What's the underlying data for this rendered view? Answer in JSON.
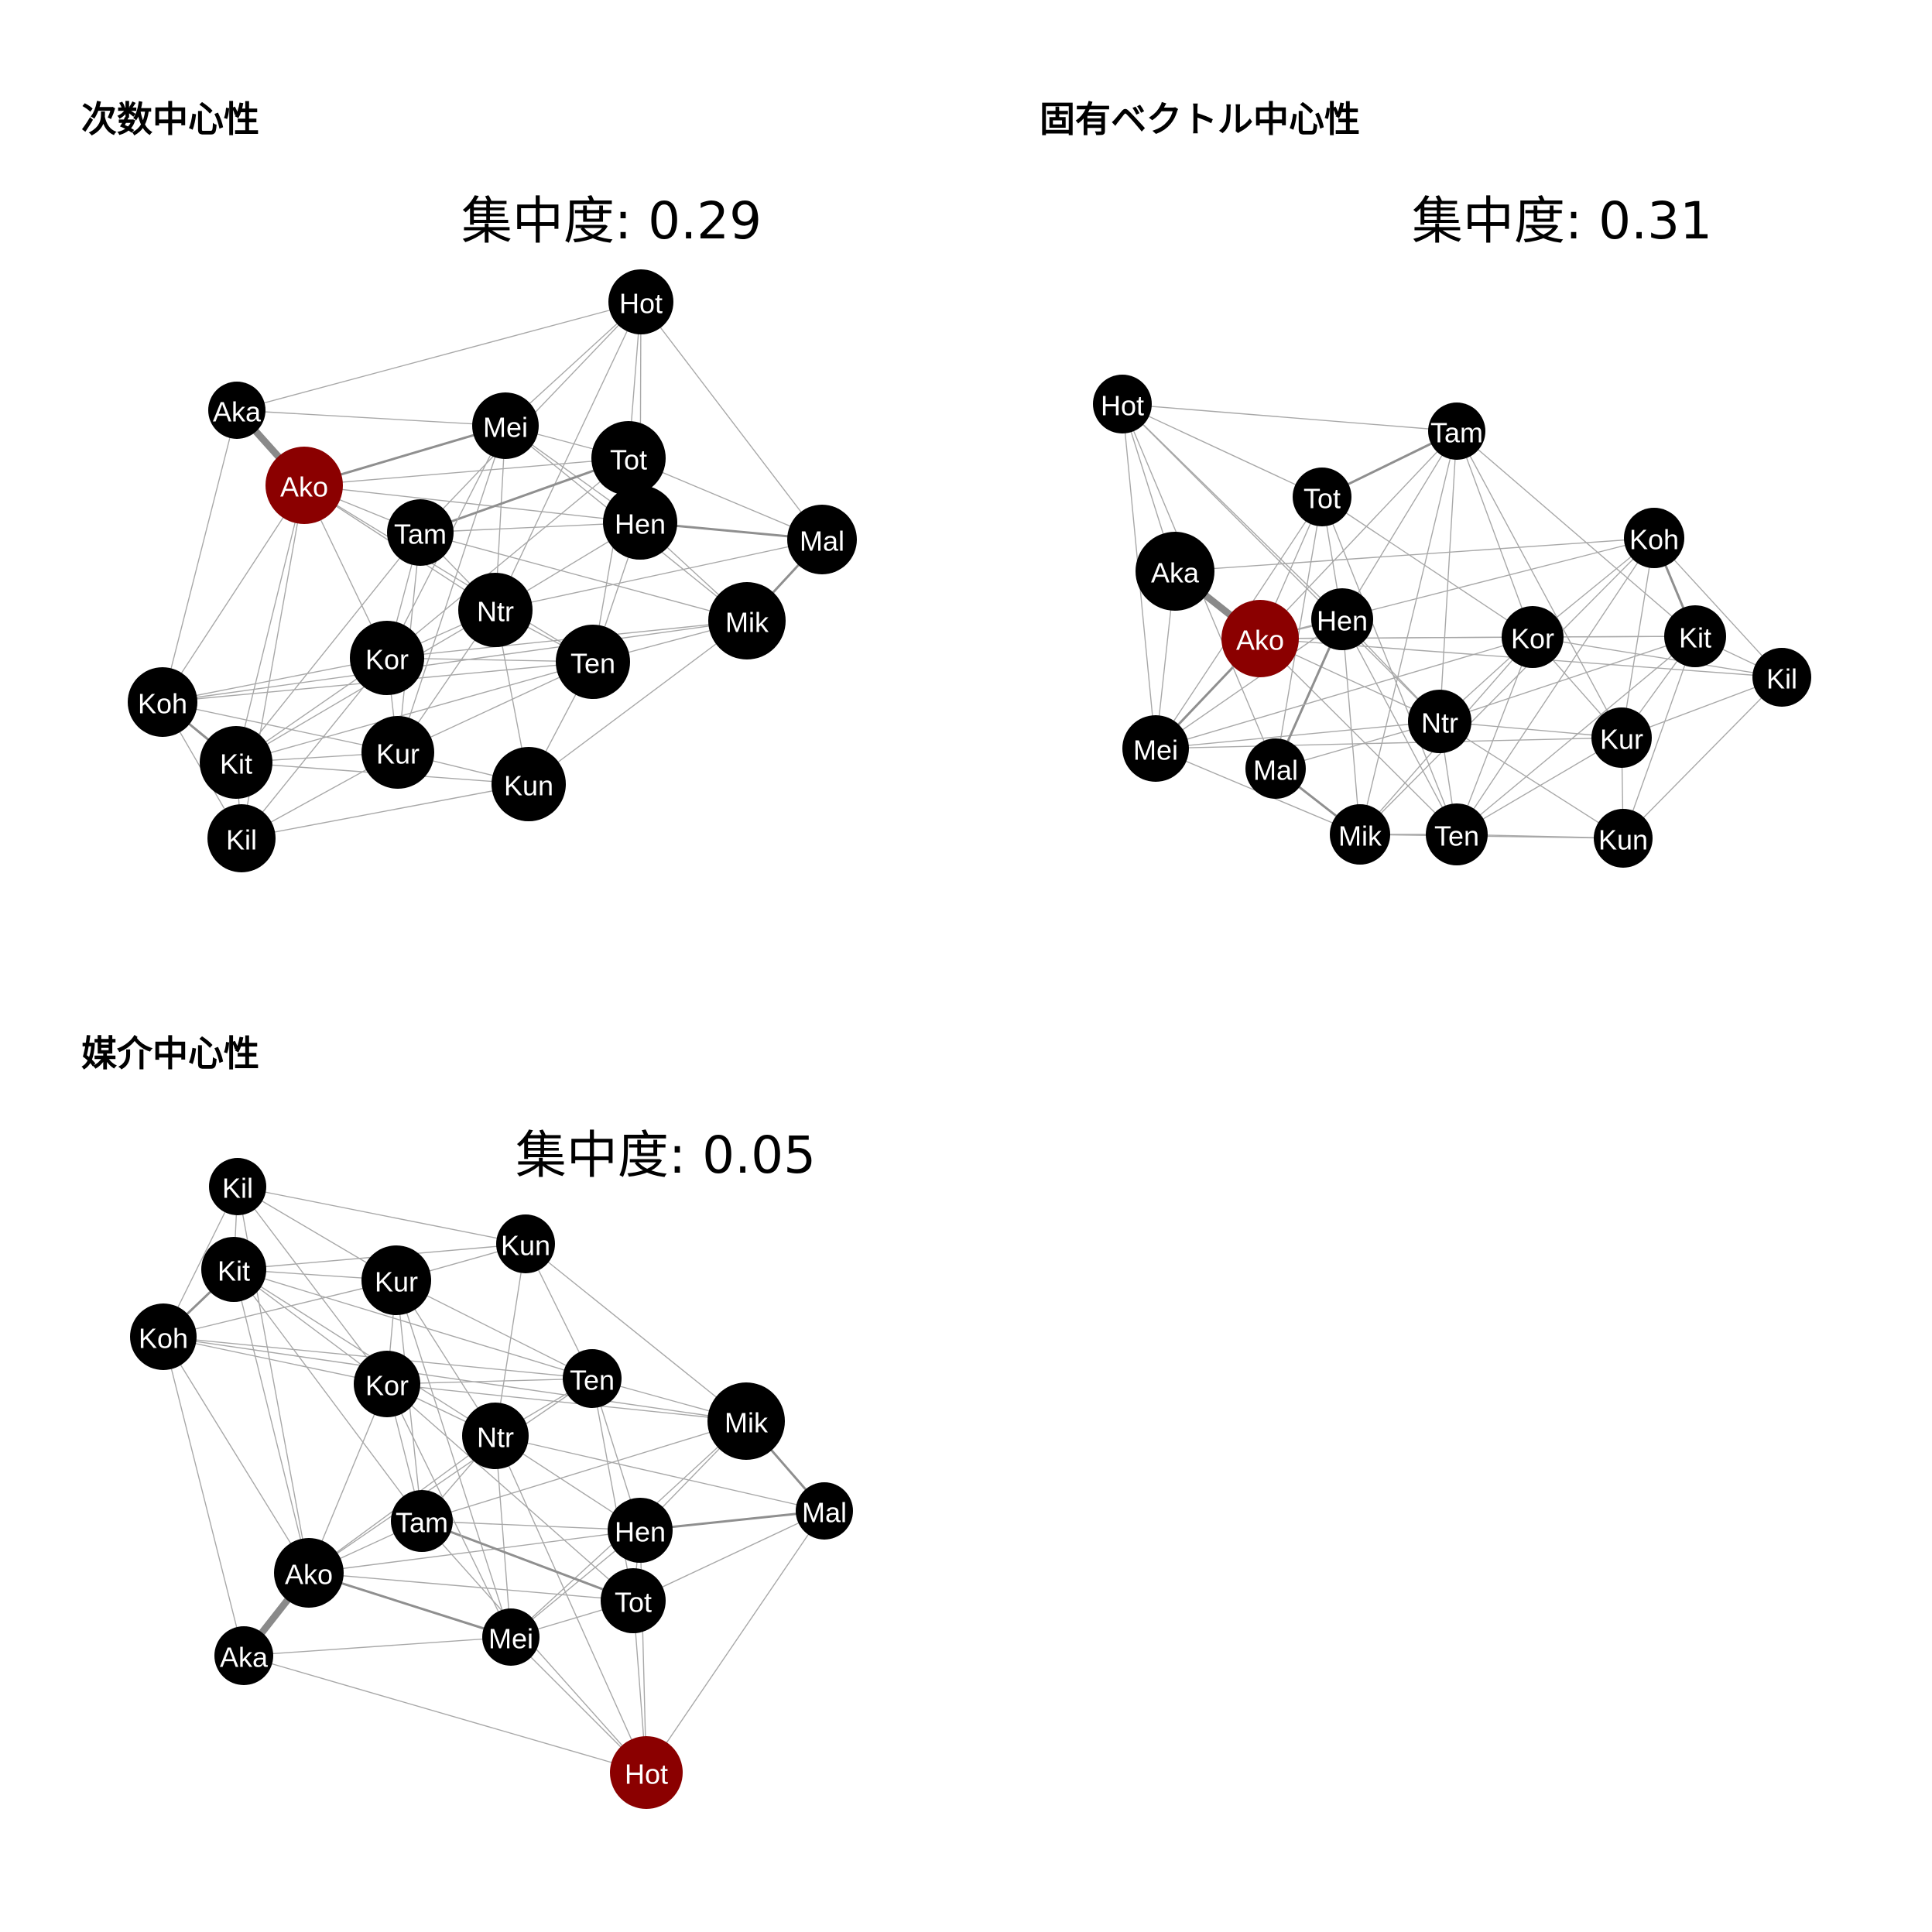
{
  "colors": {
    "default_node": "#000000",
    "highlight_node": "#8b0000",
    "label": "#ffffff"
  },
  "panels": [
    {
      "id": "degree",
      "title": "次数中心性",
      "subtitle": "集中度: 0.29",
      "highlight": "Ako",
      "nodes": [
        "Hot",
        "Aka",
        "Mei",
        "Tot",
        "Ako",
        "Hen",
        "Tam",
        "Mal",
        "Ntr",
        "Mik",
        "Kor",
        "Ten",
        "Koh",
        "Kit",
        "Kur",
        "Kun",
        "Kil"
      ]
    },
    {
      "id": "eigenvector",
      "title": "固有ベクトル中心性",
      "subtitle": "集中度: 0.31",
      "highlight": "Ako",
      "nodes": [
        "Hot",
        "Tam",
        "Tot",
        "Koh",
        "Aka",
        "Hen",
        "Ako",
        "Kor",
        "Kit",
        "Kil",
        "Ntr",
        "Mei",
        "Mal",
        "Kur",
        "Mik",
        "Ten",
        "Kun"
      ]
    },
    {
      "id": "betweenness",
      "title": "媒介中心性",
      "subtitle": "集中度: 0.05",
      "highlight": "Hot",
      "nodes": [
        "Kil",
        "Kit",
        "Kun",
        "Kur",
        "Koh",
        "Ten",
        "Kor",
        "Ntr",
        "Mik",
        "Tam",
        "Hen",
        "Mal",
        "Ako",
        "Tot",
        "Mei",
        "Aka",
        "Hot"
      ]
    }
  ]
}
